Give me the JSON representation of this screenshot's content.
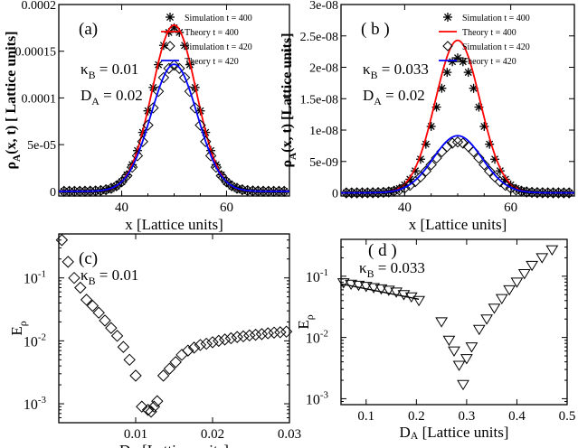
{
  "chart_data": [
    {
      "type": "scatter",
      "panel_label": "(a)",
      "xlabel": "x [Lattice units]",
      "ylabel": "ρ_A(x, t) [ Lattice units]",
      "ylabel_main": "ρ",
      "ylabel_sub": "A",
      "ylabel_rest": "(x, t) [ Lattice units]",
      "xlim": [
        28,
        72
      ],
      "ylim": [
        -5e-06,
        0.0002
      ],
      "xticks": [
        40,
        60
      ],
      "yticks": [
        0,
        5e-05,
        0.0001,
        0.00015,
        0.0002
      ],
      "ytick_labels": [
        "0",
        "5e-05",
        "0.0001",
        "0.00015",
        "0.0002"
      ],
      "annotations": [
        {
          "main": "κ",
          "sub": "B",
          "rest": " = 0.01"
        },
        {
          "main": "D",
          "sub": "A",
          "rest": " = 0.02"
        }
      ],
      "legend_position": "top-right",
      "series": [
        {
          "name": "Simulation t = 400",
          "kind": "marker",
          "marker": "star",
          "color": "#000000",
          "amplitude": 0.000175,
          "center": 50,
          "sigma": 4.2
        },
        {
          "name": "Theory t = 400",
          "kind": "line",
          "color": "#ff0000",
          "amplitude": 0.000178,
          "center": 50,
          "sigma": 4.2
        },
        {
          "name": "Simulation t = 420",
          "kind": "marker",
          "marker": "diamond",
          "color": "#000000",
          "amplitude": 0.000135,
          "center": 50,
          "sigma": 4.4
        },
        {
          "name": "Theory t = 420",
          "kind": "line",
          "color": "#0000ff",
          "amplitude": 0.000136,
          "center": 50,
          "sigma": 4.4
        }
      ]
    },
    {
      "type": "scatter",
      "panel_label": "( b )",
      "xlabel": "x [Lattice units]",
      "ylabel": "ρ_A(x, t) [Lattice units]",
      "ylabel_main": "ρ",
      "ylabel_sub": "A",
      "ylabel_rest": "(x, t) [Lattice units]",
      "xlim": [
        28,
        72
      ],
      "ylim": [
        -5e-10,
        3e-08
      ],
      "xticks": [
        40,
        60
      ],
      "yticks": [
        0,
        5e-09,
        1e-08,
        1.5e-08,
        2e-08,
        2.5e-08,
        3e-08
      ],
      "ytick_labels": [
        "0",
        "5e-09",
        "1e-08",
        "1.5e-08",
        "2e-08",
        "2.5e-08",
        "3e-08"
      ],
      "annotations": [
        {
          "main": "κ",
          "sub": "B",
          "rest": " = 0.033"
        },
        {
          "main": "D",
          "sub": "A",
          "rest": " = 0.02"
        }
      ],
      "legend_position": "top-right",
      "series": [
        {
          "name": "Simulation t = 400",
          "kind": "marker",
          "marker": "star",
          "color": "#000000",
          "amplitude": 2.15e-08,
          "center": 50,
          "sigma": 4.2
        },
        {
          "name": "Theory t = 400",
          "kind": "line",
          "color": "#ff0000",
          "amplitude": 2.43e-08,
          "center": 50,
          "sigma": 4.2
        },
        {
          "name": "Simulation t = 420",
          "kind": "marker",
          "marker": "diamond",
          "color": "#000000",
          "amplitude": 8.1e-09,
          "center": 50,
          "sigma": 4.6
        },
        {
          "name": "Theory t = 420",
          "kind": "line",
          "color": "#0000ff",
          "amplitude": 9.1e-09,
          "center": 50,
          "sigma": 4.6
        }
      ]
    },
    {
      "type": "scatter",
      "panel_label": "(c)",
      "xlabel": "D_A [Lattice units]",
      "xlabel_main": "D",
      "xlabel_sub": "A",
      "xlabel_rest": " [Lattice units]",
      "ylabel": "E_ρ",
      "ylabel_main": "E",
      "ylabel_sub": "ρ",
      "yscale": "log",
      "xlim": [
        0,
        0.03
      ],
      "ylim": [
        0.0005,
        0.5
      ],
      "xticks": [
        0.01,
        0.02,
        0.03
      ],
      "xtick_labels": [
        "0.01",
        "0.02",
        "0.03"
      ],
      "yticks": [
        0.001,
        0.01,
        0.1
      ],
      "ytick_labels": [
        {
          "base": "10",
          "exp": "-3"
        },
        {
          "base": "10",
          "exp": "-2"
        },
        {
          "base": "10",
          "exp": "-1"
        }
      ],
      "annotations": [
        {
          "main": "κ",
          "sub": "B",
          "rest": " = 0.01"
        }
      ],
      "series": [
        {
          "name": "E_ρ",
          "marker": "diamond",
          "color": "#000000",
          "x": [
            0.0004,
            0.0012,
            0.002,
            0.0028,
            0.0036,
            0.0044,
            0.0052,
            0.006,
            0.0068,
            0.0076,
            0.0084,
            0.0092,
            0.01,
            0.0108,
            0.0116,
            0.012,
            0.0124,
            0.0128,
            0.0136,
            0.0144,
            0.0152,
            0.016,
            0.0168,
            0.0176,
            0.0184,
            0.0192,
            0.02,
            0.0208,
            0.0216,
            0.0224,
            0.0232,
            0.024,
            0.0248,
            0.0256,
            0.0264,
            0.0272,
            0.028,
            0.0288,
            0.0296
          ],
          "y": [
            0.4,
            0.18,
            0.1,
            0.07,
            0.045,
            0.036,
            0.028,
            0.021,
            0.016,
            0.012,
            0.008,
            0.005,
            0.0028,
            0.0009,
            0.0008,
            0.00075,
            0.0009,
            0.0011,
            0.0028,
            0.0036,
            0.0046,
            0.006,
            0.007,
            0.0078,
            0.0086,
            0.009,
            0.0095,
            0.01,
            0.0105,
            0.011,
            0.0115,
            0.0118,
            0.0122,
            0.0125,
            0.0128,
            0.0132,
            0.0135,
            0.0137,
            0.014
          ]
        }
      ]
    },
    {
      "type": "scatter",
      "panel_label": "( d )",
      "xlabel": "D_A [Lattice units]",
      "xlabel_main": "D",
      "xlabel_sub": "A",
      "xlabel_rest": " [Lattice units]",
      "ylabel": "E_ρ",
      "ylabel_main": "E",
      "ylabel_sub": "ρ",
      "yscale": "log",
      "xlim": [
        0.05,
        0.5
      ],
      "ylim": [
        0.0008,
        0.4
      ],
      "xticks": [
        0.1,
        0.2,
        0.3,
        0.4,
        0.5
      ],
      "xtick_labels": [
        "0.1",
        "0.2",
        "0.3",
        "0.4",
        "0.5"
      ],
      "yticks": [
        0.001,
        0.01,
        0.1
      ],
      "ytick_labels": [
        {
          "base": "10",
          "exp": "-3"
        },
        {
          "base": "10",
          "exp": "-2"
        },
        {
          "base": "10",
          "exp": "-1"
        }
      ],
      "annotations": [
        {
          "main": "κ",
          "sub": "B",
          "rest": " = 0.033"
        }
      ],
      "line": {
        "x": [
          0.05,
          0.205
        ],
        "y": [
          0.075,
          0.042
        ],
        "color": "#000000"
      },
      "series": [
        {
          "name": "E_ρ",
          "marker": "triangle-down",
          "color": "#000000",
          "x": [
            0.055,
            0.07,
            0.085,
            0.1,
            0.115,
            0.13,
            0.145,
            0.16,
            0.175,
            0.19,
            0.205,
            0.25,
            0.265,
            0.275,
            0.285,
            0.293,
            0.3,
            0.31,
            0.325,
            0.34,
            0.355,
            0.37,
            0.385,
            0.4,
            0.415,
            0.43,
            0.45,
            0.47
          ],
          "y": [
            0.078,
            0.074,
            0.071,
            0.068,
            0.065,
            0.062,
            0.059,
            0.055,
            0.05,
            0.046,
            0.04,
            0.018,
            0.009,
            0.006,
            0.0035,
            0.0017,
            0.0045,
            0.007,
            0.0135,
            0.02,
            0.03,
            0.043,
            0.06,
            0.08,
            0.11,
            0.15,
            0.2,
            0.27
          ]
        }
      ]
    }
  ]
}
